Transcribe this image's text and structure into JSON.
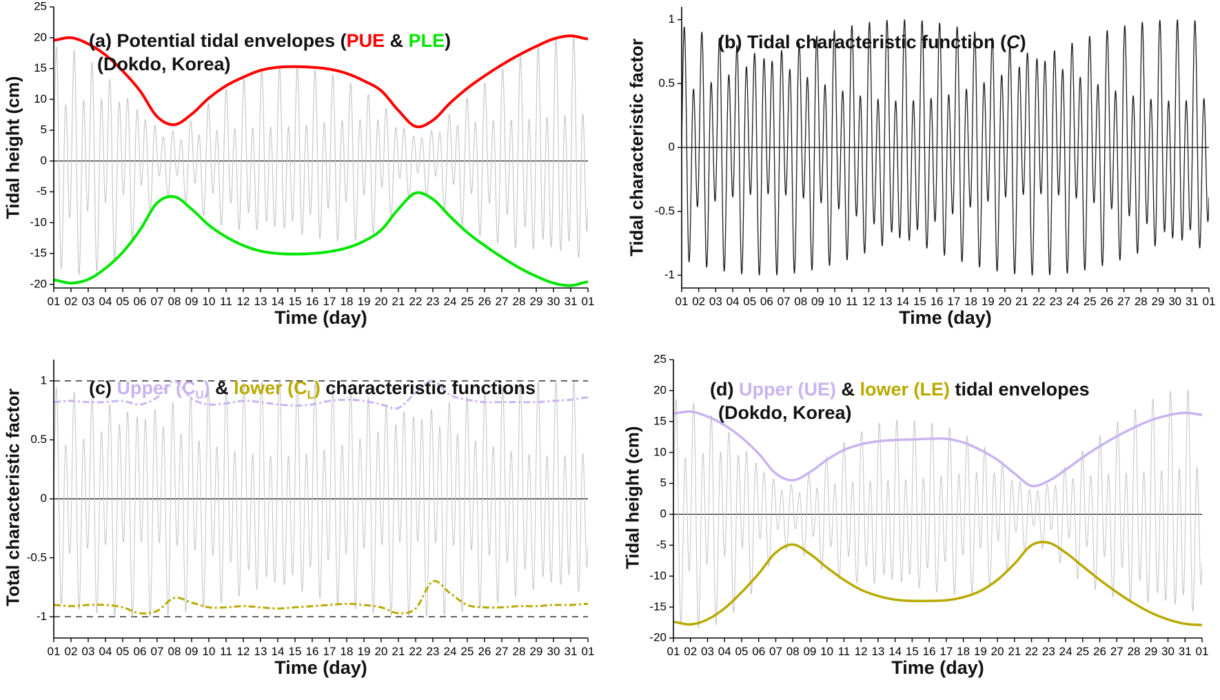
{
  "colors": {
    "red": "#ff0000",
    "green": "#00e600",
    "lavender": "#c9b3f0",
    "olive": "#b9a900",
    "gray": "#c7c7c7",
    "line_black": "#1a1a1a",
    "axis_black": "#000000"
  },
  "days": [
    1,
    2,
    3,
    4,
    5,
    6,
    7,
    8,
    9,
    10,
    11,
    12,
    13,
    14,
    15,
    16,
    17,
    18,
    19,
    20,
    21,
    22,
    23,
    24,
    25,
    26,
    27,
    28,
    29,
    30,
    31,
    32
  ],
  "oscillator": {
    "components": [
      {
        "amp": 0.75,
        "period_days": 0.5175,
        "phase": 0.0
      },
      {
        "amp": 0.35,
        "period_days": 1.0027,
        "phase": 1.2
      }
    ],
    "normalize": 1.1
  },
  "chart_data": [
    {
      "id": "a",
      "type": "line",
      "title": "(a) Potential tidal envelopes (PUE & PLE) (Dokdo, Korea)",
      "title_parts": {
        "prefix": "(a) Potential tidal envelopes (",
        "pue": "PUE",
        "amp": " & ",
        "ple": "PLE",
        "close": ")",
        "line2": "(Dokdo, Korea)"
      },
      "xlabel": "Time (day)",
      "ylabel": "Tidal height (cm)",
      "xlim": [
        1,
        32
      ],
      "ylim": [
        -20.6,
        25
      ],
      "yticks": [
        -20,
        -15,
        -10,
        -5,
        0,
        5,
        10,
        15,
        20,
        25
      ],
      "xtick_labels": [
        "01",
        "02",
        "03",
        "04",
        "05",
        "06",
        "07",
        "08",
        "09",
        "10",
        "11",
        "12",
        "13",
        "14",
        "15",
        "16",
        "17",
        "18",
        "19",
        "20",
        "21",
        "22",
        "23",
        "24",
        "25",
        "26",
        "27",
        "28",
        "29",
        "30",
        "31",
        "01"
      ],
      "zero_line": true,
      "hlines": [],
      "series": [
        {
          "name": "tide",
          "kind": "modulated",
          "upper": "PUE",
          "lower": "PLE",
          "color": "gray",
          "width": 1.2
        },
        {
          "name": "PUE",
          "kind": "spline",
          "color": "red",
          "width": 4,
          "y": [
            19.6,
            20.0,
            19.0,
            17.2,
            14.6,
            11.4,
            7.2,
            5.9,
            7.6,
            10.2,
            12.2,
            13.6,
            14.7,
            15.2,
            15.3,
            15.2,
            14.9,
            14.2,
            13.0,
            11.4,
            8.2,
            5.6,
            6.6,
            9.4,
            11.8,
            13.8,
            15.6,
            17.2,
            18.6,
            19.8,
            20.3,
            19.8
          ]
        },
        {
          "name": "PLE",
          "kind": "spline",
          "color": "green",
          "width": 4,
          "y": [
            -19.3,
            -19.8,
            -19.2,
            -17.4,
            -14.8,
            -11.2,
            -6.8,
            -5.8,
            -7.8,
            -10.4,
            -12.3,
            -13.7,
            -14.6,
            -15.0,
            -15.1,
            -15.0,
            -14.7,
            -14.1,
            -13.0,
            -11.2,
            -7.8,
            -5.2,
            -6.2,
            -9.0,
            -11.6,
            -13.7,
            -15.6,
            -17.3,
            -18.7,
            -19.8,
            -20.2,
            -19.6
          ]
        }
      ]
    },
    {
      "id": "b",
      "type": "line",
      "title": "(b) Tidal characteristic function (C)",
      "title_parts": {
        "prefix": "(b) Tidal characteristic function (",
        "c": "C",
        "close": ")"
      },
      "xlabel": "Time (day)",
      "ylabel": "Tidal characteristic factor",
      "xlim": [
        1,
        32
      ],
      "ylim": [
        -1.1,
        1.1
      ],
      "yticks": [
        -1,
        -0.5,
        0,
        0.5,
        1
      ],
      "xtick_labels": [
        "01",
        "02",
        "03",
        "04",
        "05",
        "06",
        "07",
        "08",
        "09",
        "10",
        "11",
        "12",
        "13",
        "14",
        "15",
        "16",
        "17",
        "18",
        "19",
        "20",
        "21",
        "22",
        "23",
        "24",
        "25",
        "26",
        "27",
        "28",
        "29",
        "30",
        "31",
        "01"
      ],
      "zero_line": true,
      "hlines": [],
      "series": [
        {
          "name": "C",
          "kind": "oscillator",
          "color": "line_black",
          "width": 1.3
        }
      ]
    },
    {
      "id": "c",
      "type": "line",
      "title": "(c) Upper (C_U) & lower (C_L) characteristic functions",
      "title_parts": {
        "prefix": "(c) ",
        "upper_pre": "Upper (C",
        "upper_sub": "U",
        "upper_close": ")",
        "amp": " & ",
        "lower_pre": "lower (C",
        "lower_sub": "L",
        "lower_close": ")",
        "suffix": " characteristic functions"
      },
      "xlabel": "Time (day)",
      "ylabel": "Total characteristic factor",
      "xlim": [
        1,
        32
      ],
      "ylim": [
        -1.18,
        1.18
      ],
      "yticks": [
        -1,
        -0.5,
        0,
        0.5,
        1
      ],
      "xtick_labels": [
        "01",
        "02",
        "03",
        "04",
        "05",
        "06",
        "07",
        "08",
        "09",
        "10",
        "11",
        "12",
        "13",
        "14",
        "15",
        "16",
        "17",
        "18",
        "19",
        "20",
        "21",
        "22",
        "23",
        "24",
        "25",
        "26",
        "27",
        "28",
        "29",
        "30",
        "31",
        "01"
      ],
      "zero_line": true,
      "hlines": [
        {
          "y": 1,
          "style": "dashed"
        },
        {
          "y": -1,
          "style": "dashed"
        }
      ],
      "series": [
        {
          "name": "C",
          "kind": "oscillator",
          "color": "gray",
          "width": 1.1
        },
        {
          "name": "C_U",
          "kind": "spline",
          "color": "lavender",
          "width": 3,
          "dash": [
            10,
            4,
            3,
            4
          ],
          "y": [
            0.82,
            0.83,
            0.82,
            0.82,
            0.83,
            0.8,
            0.86,
            1.0,
            0.85,
            0.8,
            0.81,
            0.83,
            0.82,
            0.8,
            0.79,
            0.8,
            0.83,
            0.84,
            0.83,
            0.8,
            0.77,
            0.9,
            1.0,
            0.88,
            0.84,
            0.82,
            0.82,
            0.82,
            0.82,
            0.83,
            0.84,
            0.86
          ]
        },
        {
          "name": "C_L",
          "kind": "spline",
          "color": "olive",
          "width": 3,
          "dash": [
            10,
            4,
            3,
            4
          ],
          "y": [
            -0.9,
            -0.91,
            -0.9,
            -0.9,
            -0.92,
            -0.97,
            -0.95,
            -0.84,
            -0.88,
            -0.92,
            -0.92,
            -0.91,
            -0.92,
            -0.93,
            -0.92,
            -0.91,
            -0.9,
            -0.89,
            -0.9,
            -0.92,
            -0.97,
            -0.93,
            -0.7,
            -0.8,
            -0.9,
            -0.92,
            -0.92,
            -0.91,
            -0.91,
            -0.9,
            -0.9,
            -0.89
          ]
        }
      ]
    },
    {
      "id": "d",
      "type": "line",
      "title": "(d) Upper (UE) & lower (LE) tidal envelopes (Dokdo, Korea)",
      "title_parts": {
        "prefix": "(d) ",
        "upper": "Upper (UE)",
        "amp": " & ",
        "lower": "lower (LE)",
        "suffix": " tidal envelopes",
        "line2": "(Dokdo, Korea)"
      },
      "xlabel": "Time (day)",
      "ylabel": "Tidal height (cm)",
      "xlim": [
        1,
        32
      ],
      "ylim": [
        -20,
        25
      ],
      "yticks": [
        -20,
        -15,
        -10,
        -5,
        0,
        5,
        10,
        15,
        20,
        25
      ],
      "xtick_labels": [
        "01",
        "02",
        "03",
        "04",
        "05",
        "06",
        "07",
        "08",
        "09",
        "10",
        "11",
        "12",
        "13",
        "14",
        "15",
        "16",
        "17",
        "18",
        "19",
        "20",
        "21",
        "22",
        "23",
        "24",
        "25",
        "26",
        "27",
        "28",
        "29",
        "30",
        "31",
        "01"
      ],
      "zero_line": true,
      "hlines": [],
      "series": [
        {
          "name": "tide",
          "kind": "modulated",
          "upper": "PUE",
          "lower": "PLE",
          "color": "gray",
          "width": 1.1
        },
        {
          "name": "UE",
          "kind": "spline",
          "color": "lavender",
          "width": 3.5,
          "y": [
            16.3,
            16.6,
            15.8,
            14.4,
            12.4,
            9.8,
            6.6,
            5.5,
            6.8,
            8.8,
            10.4,
            11.3,
            11.8,
            12.0,
            12.1,
            12.2,
            12.2,
            11.6,
            10.4,
            8.8,
            6.6,
            4.6,
            5.4,
            7.2,
            9.2,
            11.0,
            12.6,
            14.0,
            15.2,
            16.0,
            16.4,
            16.1
          ]
        },
        {
          "name": "LE",
          "kind": "spline",
          "color": "olive",
          "width": 3.5,
          "y": [
            -17.4,
            -17.8,
            -17.0,
            -15.2,
            -12.6,
            -9.6,
            -6.2,
            -4.9,
            -6.4,
            -8.6,
            -10.6,
            -12.2,
            -13.2,
            -13.8,
            -14.0,
            -14.0,
            -13.9,
            -13.4,
            -12.4,
            -10.6,
            -8.0,
            -5.0,
            -4.6,
            -6.2,
            -8.4,
            -10.6,
            -12.6,
            -14.4,
            -15.9,
            -17.0,
            -17.7,
            -17.9
          ]
        }
      ]
    }
  ]
}
